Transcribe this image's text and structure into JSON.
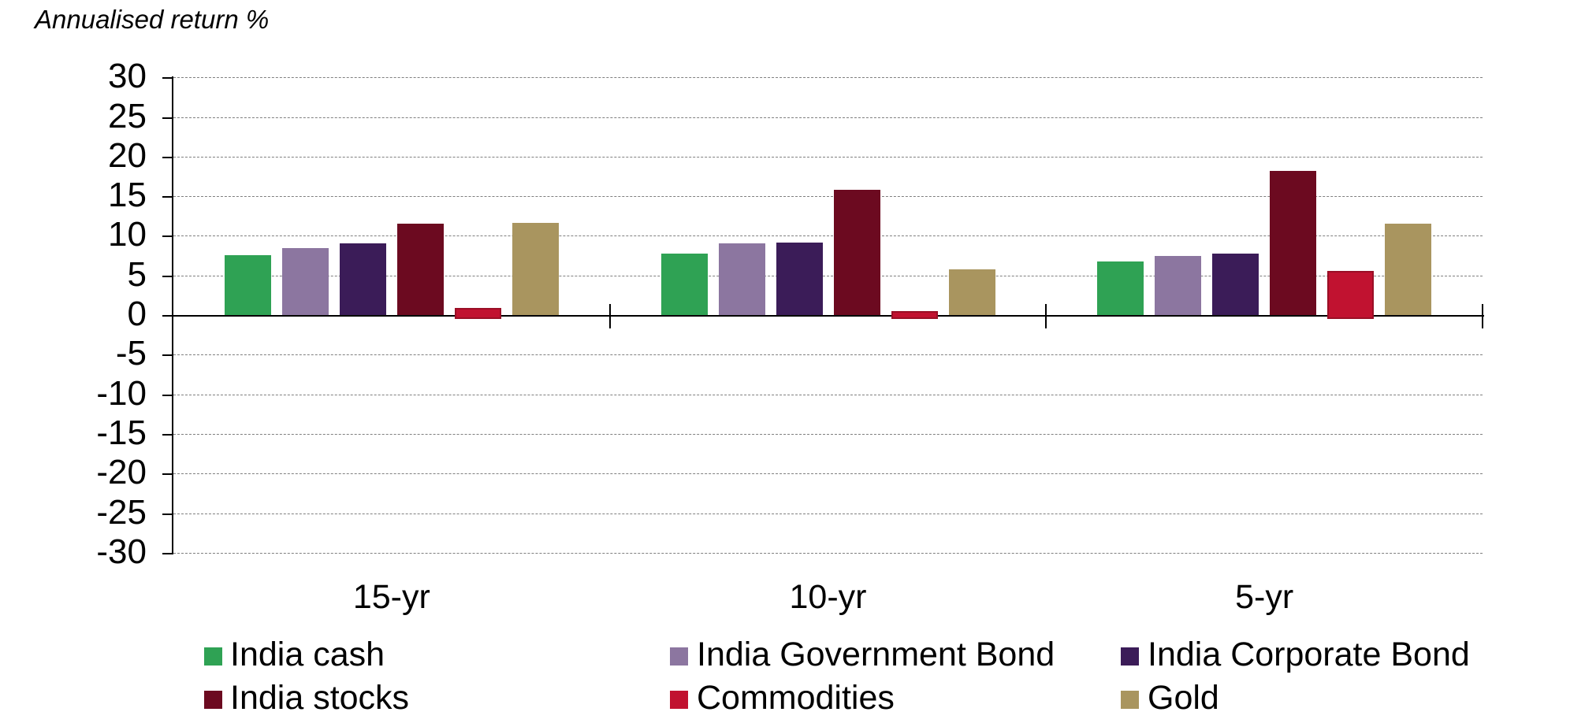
{
  "title": "Annualised return %",
  "chart_data": {
    "type": "bar",
    "title": "Annualised return %",
    "xlabel": "",
    "ylabel": "Annualised return %",
    "categories": [
      "15-yr",
      "10-yr",
      "5-yr"
    ],
    "series": [
      {
        "name": "India cash",
        "color": "#2FA254",
        "values": [
          7.6,
          7.8,
          6.8
        ]
      },
      {
        "name": "India Government Bond",
        "color": "#8C76A0",
        "values": [
          8.4,
          9.0,
          7.5
        ]
      },
      {
        "name": "India Corporate Bond",
        "color": "#3B1C58",
        "values": [
          9.0,
          9.1,
          7.8
        ]
      },
      {
        "name": "India stocks",
        "color": "#6C0A20",
        "values": [
          11.5,
          15.8,
          18.2
        ]
      },
      {
        "name": "Commodities",
        "color": "#C11230",
        "border": "#9A0F26",
        "values": [
          0.9,
          0.5,
          5.6
        ]
      },
      {
        "name": "Gold",
        "color": "#A9955F",
        "values": [
          11.6,
          5.8,
          11.5
        ]
      }
    ],
    "ylim": [
      -30,
      30
    ],
    "ytick_step": 5,
    "yticks": [
      30,
      25,
      20,
      15,
      10,
      5,
      0,
      -5,
      -10,
      -15,
      -20,
      -25,
      -30
    ],
    "grid": "horizontal-dashed",
    "gridline_color": "#7f7f7f",
    "axis_color": "#000000",
    "legend_position": "bottom",
    "legend_rows": [
      [
        "India cash",
        "India Government Bond",
        "India Corporate Bond"
      ],
      [
        "India stocks",
        "Commodities",
        "Gold"
      ]
    ]
  }
}
